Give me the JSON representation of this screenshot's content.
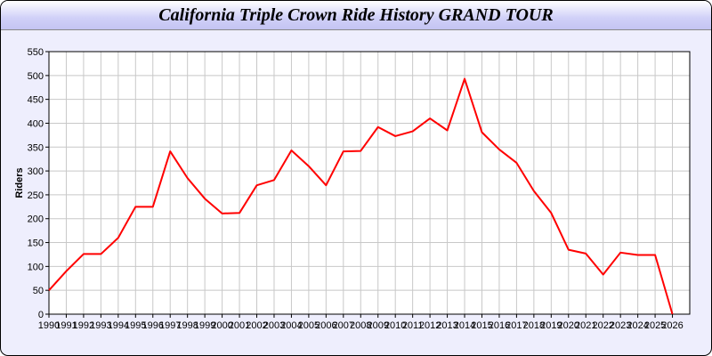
{
  "title": "California Triple Crown Ride History GRAND TOUR",
  "chart_data": {
    "type": "line",
    "title": "California Triple Crown Ride History GRAND TOUR",
    "xlabel": "",
    "ylabel": "Riders",
    "x": [
      1990,
      1991,
      1992,
      1993,
      1994,
      1995,
      1996,
      1997,
      1998,
      1999,
      2000,
      2001,
      2002,
      2003,
      2004,
      2005,
      2006,
      2007,
      2008,
      2009,
      2010,
      2011,
      2012,
      2013,
      2014,
      2015,
      2016,
      2017,
      2018,
      2019,
      2020,
      2021,
      2022,
      2023,
      2024,
      2025,
      2026
    ],
    "series": [
      {
        "values": [
          50,
          90,
          126,
          126,
          160,
          225,
          225,
          341,
          285,
          242,
          211,
          212,
          270,
          281,
          343,
          310,
          270,
          341,
          342,
          392,
          373,
          383,
          410,
          385,
          493,
          381,
          345,
          317,
          258,
          212,
          135,
          127,
          83,
          129,
          124,
          124,
          0
        ]
      }
    ],
    "xlim": [
      1990,
      2027
    ],
    "ylim": [
      0,
      550
    ],
    "yticks": [
      0,
      50,
      100,
      150,
      200,
      250,
      300,
      350,
      400,
      450,
      500,
      550
    ],
    "grid": true,
    "line_color": "#ff0000",
    "legend": "none"
  }
}
